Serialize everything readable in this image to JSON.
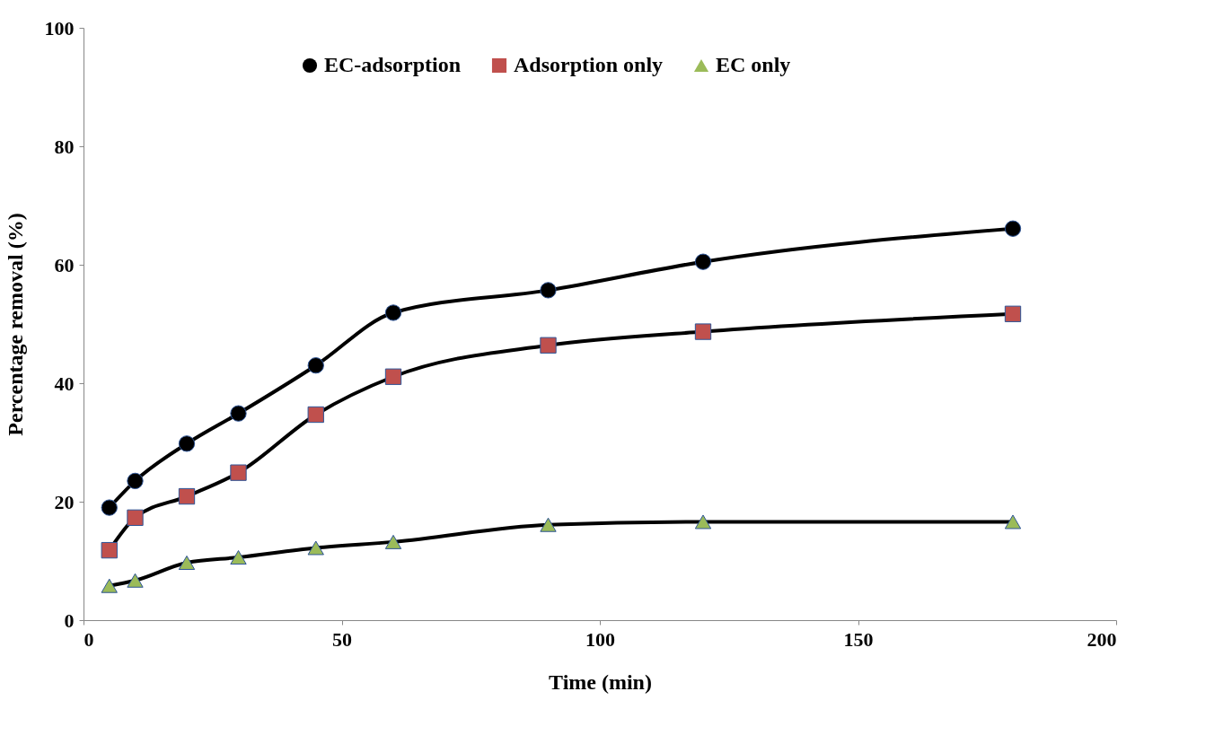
{
  "chart_data": {
    "type": "line",
    "xlabel": "Time (min)",
    "ylabel": "Percentage removal (%)",
    "x": [
      5,
      10,
      20,
      30,
      45,
      60,
      90,
      120,
      180
    ],
    "series": [
      {
        "name": "EC-adsorption",
        "color": "#000000",
        "marker": "circle",
        "values": [
          19.0,
          23.5,
          29.8,
          34.9,
          43.0,
          51.9,
          55.7,
          60.5,
          66.1
        ]
      },
      {
        "name": "Adsorption only",
        "color": "#c0504d",
        "marker": "square",
        "values": [
          11.8,
          17.3,
          20.9,
          24.9,
          34.7,
          41.1,
          46.4,
          48.7,
          51.7
        ]
      },
      {
        "name": "EC only",
        "color": "#9bbb59",
        "marker": "triangle",
        "values": [
          5.8,
          6.7,
          9.7,
          10.6,
          12.2,
          13.2,
          16.1,
          16.6,
          16.6
        ]
      }
    ],
    "xlim": [
      0,
      200
    ],
    "xticks": [
      0,
      50,
      100,
      150,
      200
    ],
    "ylim": [
      0,
      100
    ],
    "yticks": [
      0,
      20,
      40,
      60,
      80,
      100
    ],
    "grid": false,
    "legend": "top",
    "line_style": "solid"
  }
}
